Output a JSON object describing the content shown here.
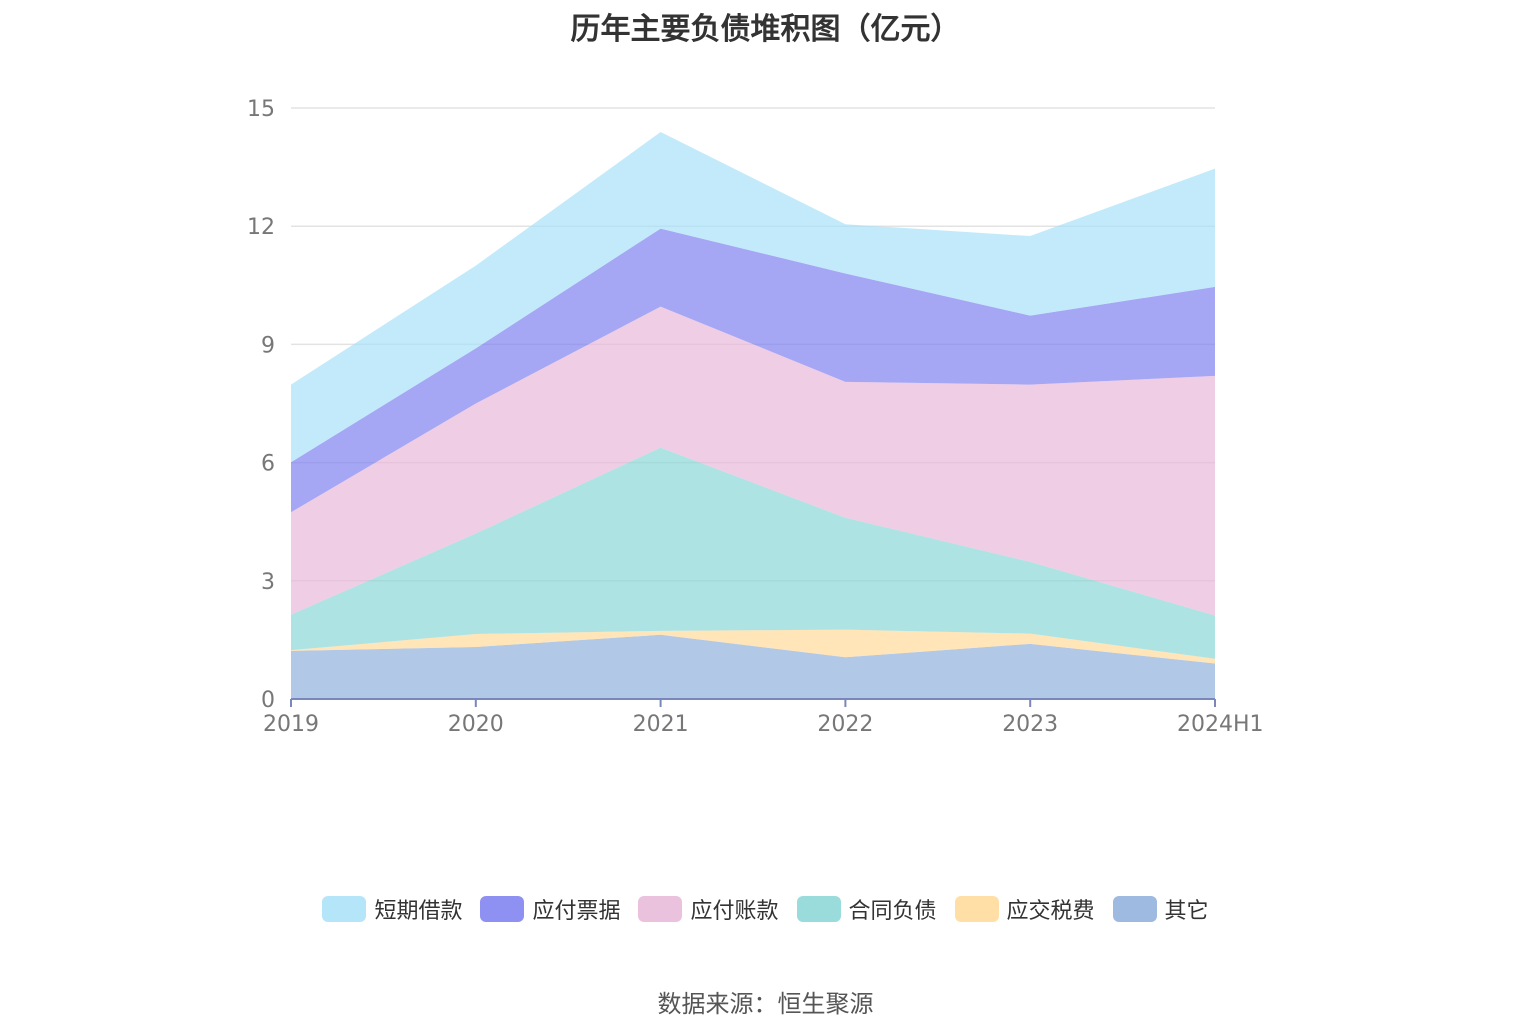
{
  "title": "历年主要负债堆积图（亿元）",
  "source": "数据来源：恒生聚源",
  "chart_data": {
    "type": "area",
    "stacked": true,
    "categories": [
      "2019",
      "2020",
      "2021",
      "2022",
      "2023",
      "2024H1"
    ],
    "ylim": [
      0,
      15
    ],
    "yticks": [
      0,
      3,
      6,
      9,
      12,
      15
    ],
    "grid": true,
    "legend_position": "bottom",
    "series": [
      {
        "name": "其它",
        "color": "#8eaedc",
        "values": [
          1.22,
          1.32,
          1.63,
          1.06,
          1.4,
          0.9
        ]
      },
      {
        "name": "应交税费",
        "color": "#ffd996",
        "values": [
          0.02,
          0.33,
          0.1,
          0.7,
          0.26,
          0.12
        ]
      },
      {
        "name": "合同负债",
        "color": "#88d6d6",
        "values": [
          0.9,
          2.55,
          4.65,
          2.84,
          1.82,
          1.1
        ]
      },
      {
        "name": "应付账款",
        "color": "#e8b7d8",
        "values": [
          2.6,
          3.3,
          3.58,
          3.45,
          4.5,
          6.08
        ]
      },
      {
        "name": "应付票据",
        "color": "#7b7ef0",
        "values": [
          1.27,
          1.4,
          1.98,
          2.75,
          1.75,
          2.26
        ]
      },
      {
        "name": "短期借款",
        "color": "#a7e0f8",
        "values": [
          1.97,
          2.1,
          2.45,
          1.25,
          2.02,
          3.0
        ]
      }
    ],
    "legend_order": [
      "短期借款",
      "应付票据",
      "应付账款",
      "合同负债",
      "应交税费",
      "其它"
    ]
  }
}
